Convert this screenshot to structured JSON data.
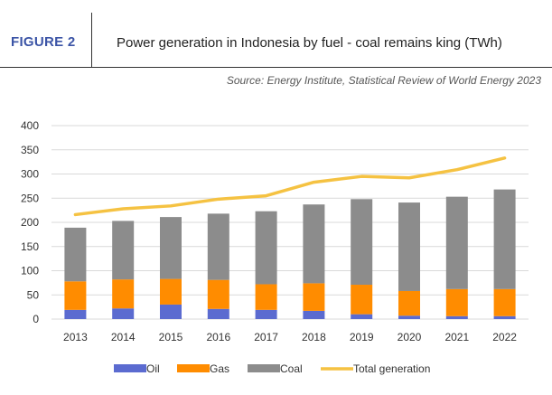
{
  "figure_label": "FIGURE 2",
  "figure_title": "Power generation in Indonesia by fuel - coal remains king (TWh)",
  "source": "Source: Energy Institute, Statistical Review of World Energy 2023",
  "colors": {
    "oil": "#5b6bd0",
    "gas": "#ff8c00",
    "coal": "#8c8c8c",
    "total": "#f5c242",
    "grid": "#d9d9d9",
    "figure_label": "#3b54a6"
  },
  "chart_data": {
    "type": "bar",
    "stacked": true,
    "categories": [
      "2013",
      "2014",
      "2015",
      "2016",
      "2017",
      "2018",
      "2019",
      "2020",
      "2021",
      "2022"
    ],
    "series": [
      {
        "name": "Oil",
        "values": [
          19,
          22,
          30,
          21,
          19,
          17,
          10,
          7,
          6,
          6
        ]
      },
      {
        "name": "Gas",
        "values": [
          59,
          60,
          53,
          60,
          53,
          57,
          61,
          51,
          56,
          56
        ]
      },
      {
        "name": "Coal",
        "values": [
          111,
          121,
          128,
          137,
          151,
          163,
          177,
          183,
          191,
          206
        ]
      }
    ],
    "line_series": {
      "name": "Total generation",
      "values": [
        216,
        228,
        234,
        248,
        255,
        283,
        295,
        292,
        309,
        333
      ]
    },
    "ylim": [
      0,
      400
    ],
    "yticks": [
      0,
      50,
      100,
      150,
      200,
      250,
      300,
      350,
      400
    ],
    "grid": true,
    "legend_position": "bottom",
    "legend": [
      "Oil",
      "Gas",
      "Coal",
      "Total generation"
    ]
  }
}
